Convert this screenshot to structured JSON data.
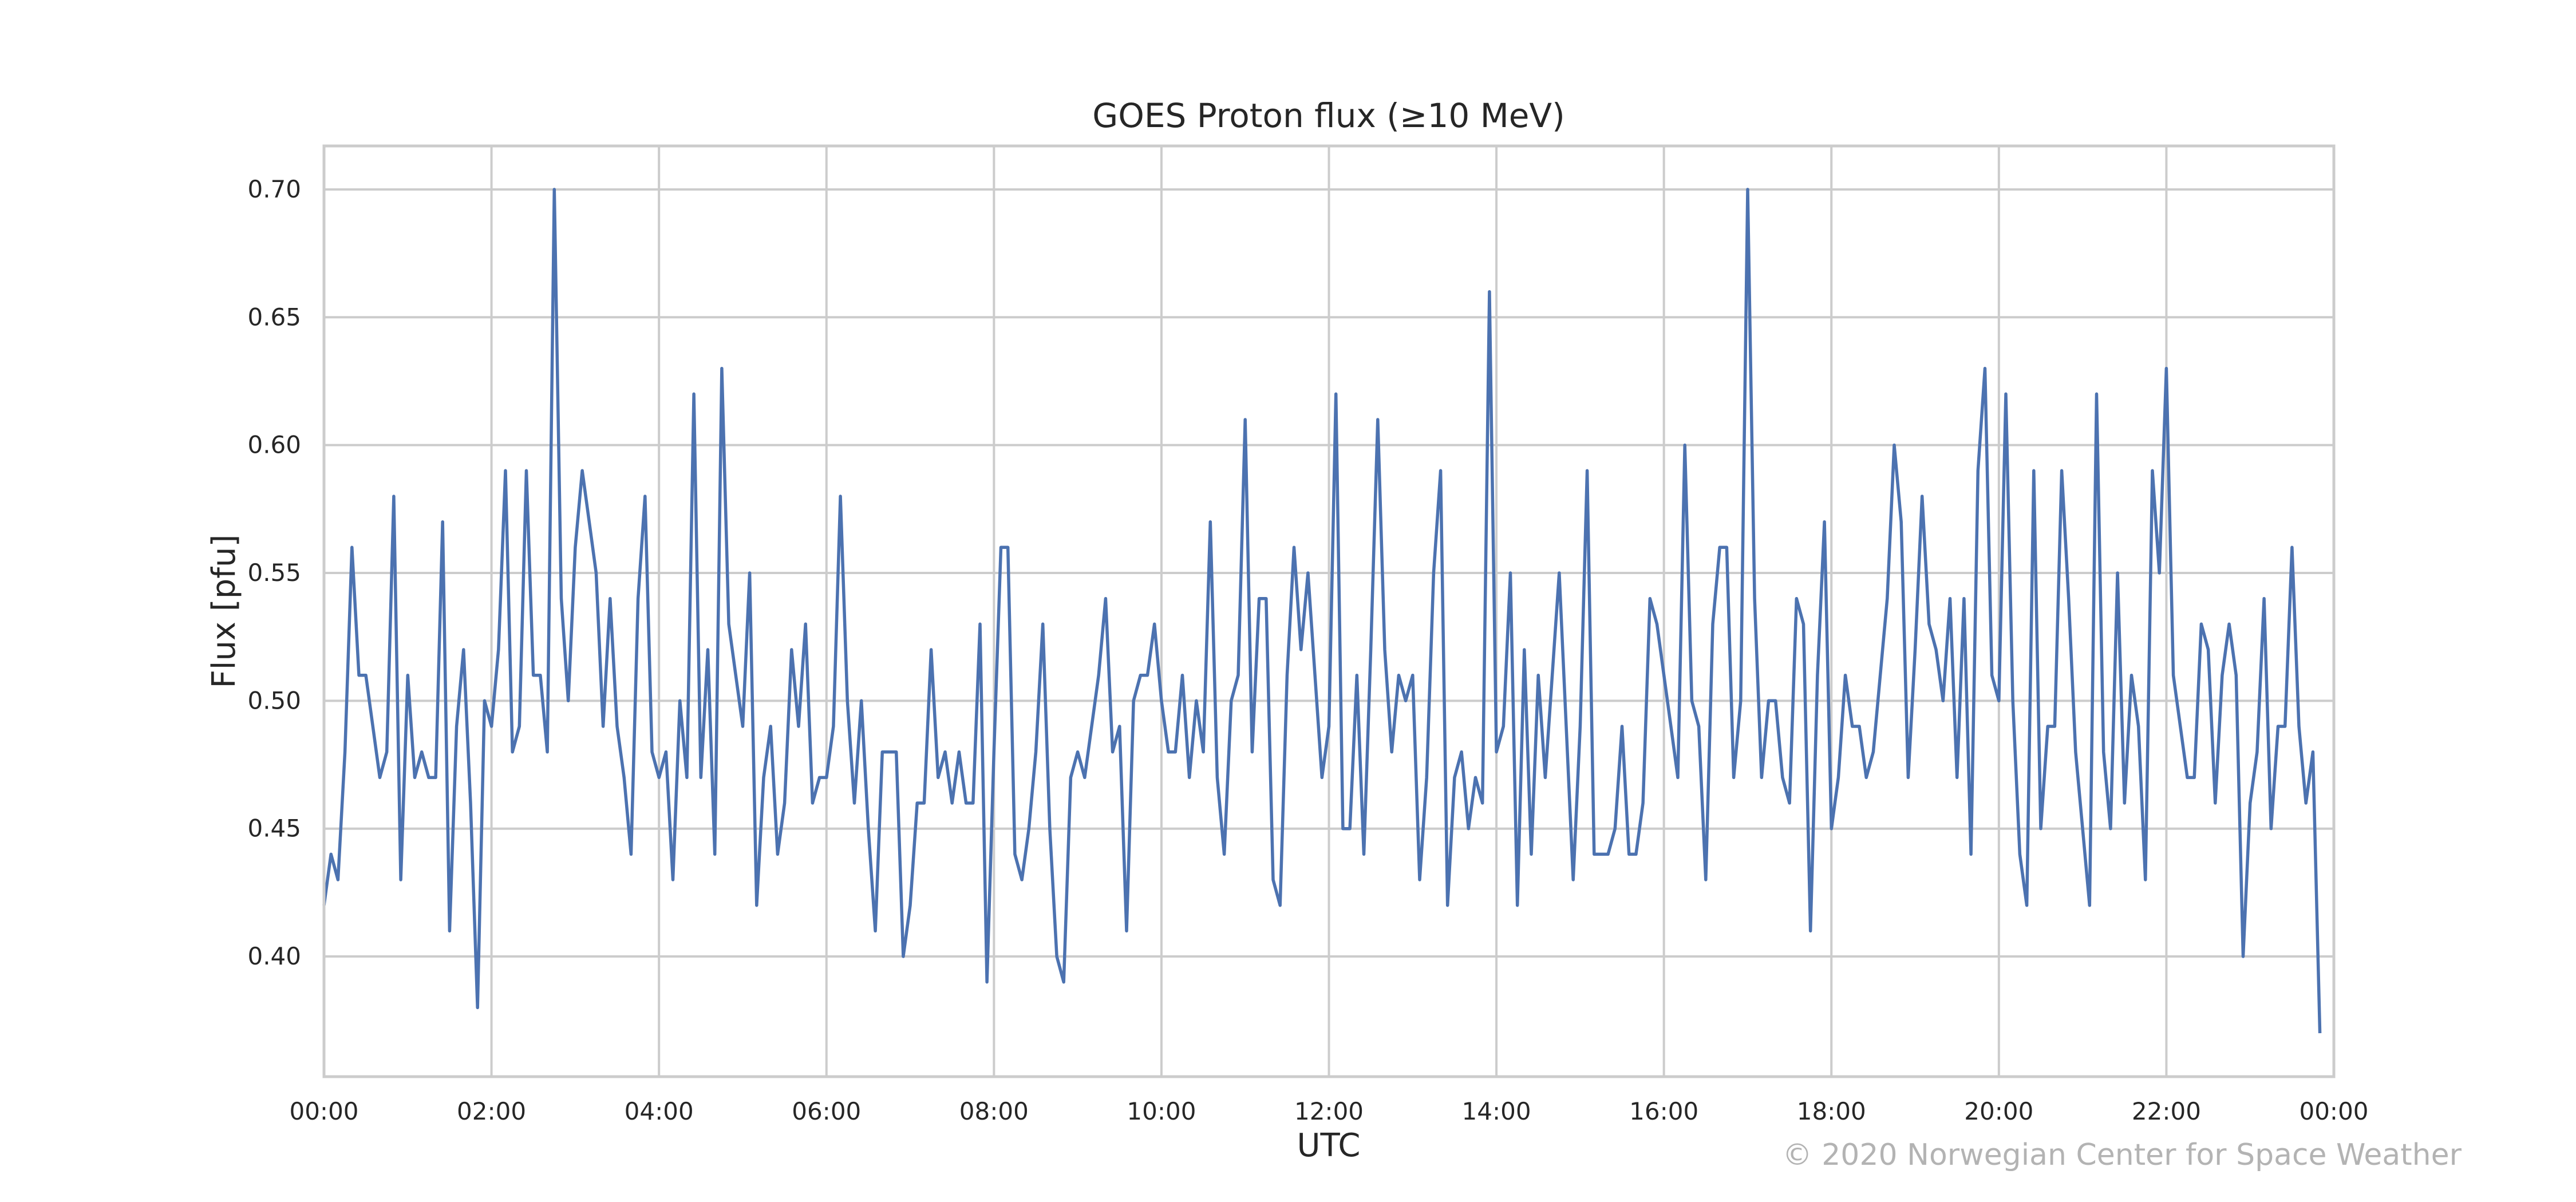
{
  "chart_data": {
    "type": "line",
    "title": "GOES Proton flux (≥10 MeV)",
    "xlabel": "UTC",
    "ylabel": "Flux [pfu]",
    "x_range": [
      "00:00",
      "24:00"
    ],
    "xlim_minutes": [
      0,
      1440
    ],
    "ylim": [
      0.353,
      0.717
    ],
    "x_ticks": [
      "00:00",
      "02:00",
      "04:00",
      "06:00",
      "08:00",
      "10:00",
      "12:00",
      "14:00",
      "16:00",
      "18:00",
      "20:00",
      "22:00",
      "00:00"
    ],
    "y_ticks": [
      "0.40",
      "0.45",
      "0.50",
      "0.55",
      "0.60",
      "0.65",
      "0.70"
    ],
    "y_tick_values": [
      0.4,
      0.45,
      0.5,
      0.55,
      0.6,
      0.65,
      0.7
    ],
    "grid": true,
    "line_color": "#4c72b0",
    "sample_interval_minutes": 5,
    "series": [
      {
        "values": [
          0.42,
          0.44,
          0.43,
          0.48,
          0.56,
          0.51,
          0.51,
          0.49,
          0.47,
          0.48,
          0.58,
          0.43,
          0.51,
          0.47,
          0.48,
          0.47,
          0.47,
          0.57,
          0.41,
          0.49,
          0.52,
          0.46,
          0.38,
          0.5,
          0.49,
          0.52,
          0.59,
          0.48,
          0.49,
          0.59,
          0.51,
          0.51,
          0.48,
          0.7,
          0.54,
          0.5,
          0.56,
          0.59,
          0.57,
          0.55,
          0.49,
          0.54,
          0.49,
          0.47,
          0.44,
          0.54,
          0.58,
          0.48,
          0.47,
          0.48,
          0.43,
          0.5,
          0.47,
          0.62,
          0.47,
          0.52,
          0.44,
          0.63,
          0.53,
          0.51,
          0.49,
          0.55,
          0.42,
          0.47,
          0.49,
          0.44,
          0.46,
          0.52,
          0.49,
          0.53,
          0.46,
          0.47,
          0.47,
          0.49,
          0.58,
          0.5,
          0.46,
          0.5,
          0.45,
          0.41,
          0.48,
          0.48,
          0.48,
          0.4,
          0.42,
          0.46,
          0.46,
          0.52,
          0.47,
          0.48,
          0.46,
          0.48,
          0.46,
          0.46,
          0.53,
          0.39,
          0.48,
          0.56,
          0.56,
          0.44,
          0.43,
          0.45,
          0.48,
          0.53,
          0.45,
          0.4,
          0.39,
          0.47,
          0.48,
          0.47,
          0.49,
          0.51,
          0.54,
          0.48,
          0.49,
          0.41,
          0.5,
          0.51,
          0.51,
          0.53,
          0.5,
          0.48,
          0.48,
          0.51,
          0.47,
          0.5,
          0.48,
          0.57,
          0.47,
          0.44,
          0.5,
          0.51,
          0.61,
          0.48,
          0.54,
          0.54,
          0.43,
          0.42,
          0.51,
          0.56,
          0.52,
          0.55,
          0.51,
          0.47,
          0.49,
          0.62,
          0.45,
          0.45,
          0.51,
          0.44,
          0.52,
          0.61,
          0.52,
          0.48,
          0.51,
          0.5,
          0.51,
          0.43,
          0.47,
          0.55,
          0.59,
          0.42,
          0.47,
          0.48,
          0.45,
          0.47,
          0.46,
          0.66,
          0.48,
          0.49,
          0.55,
          0.42,
          0.52,
          0.44,
          0.51,
          0.47,
          0.51,
          0.55,
          0.49,
          0.43,
          0.49,
          0.59,
          0.44,
          0.44,
          0.44,
          0.45,
          0.49,
          0.44,
          0.44,
          0.46,
          0.54,
          0.53,
          0.51,
          0.49,
          0.47,
          0.6,
          0.5,
          0.49,
          0.43,
          0.53,
          0.56,
          0.56,
          0.47,
          0.5,
          0.7,
          0.54,
          0.47,
          0.5,
          0.5,
          0.47,
          0.46,
          0.54,
          0.53,
          0.41,
          0.51,
          0.57,
          0.45,
          0.47,
          0.51,
          0.49,
          0.49,
          0.47,
          0.48,
          0.51,
          0.54,
          0.6,
          0.57,
          0.47,
          0.52,
          0.58,
          0.53,
          0.52,
          0.5,
          0.54,
          0.47,
          0.54,
          0.44,
          0.59,
          0.63,
          0.51,
          0.5,
          0.62,
          0.5,
          0.44,
          0.42,
          0.59,
          0.45,
          0.49,
          0.49,
          0.59,
          0.54,
          0.48,
          0.45,
          0.42,
          0.62,
          0.48,
          0.45,
          0.55,
          0.46,
          0.51,
          0.49,
          0.43,
          0.59,
          0.55,
          0.63,
          0.51,
          0.49,
          0.47,
          0.47,
          0.53,
          0.52,
          0.46,
          0.51,
          0.53,
          0.51,
          0.4,
          0.46,
          0.48,
          0.54,
          0.45,
          0.49,
          0.49,
          0.56,
          0.49,
          0.46,
          0.48,
          0.37
        ]
      }
    ]
  },
  "copyright": "© 2020 Norwegian Center for Space Weather"
}
